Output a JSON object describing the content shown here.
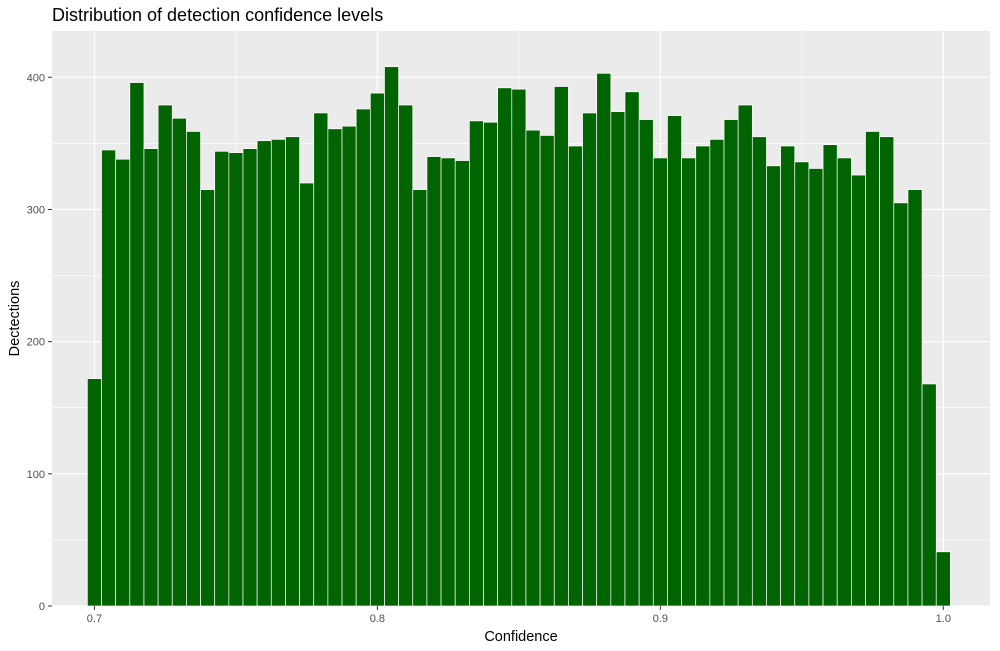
{
  "chart_data": {
    "type": "bar",
    "title": "Distribution of detection confidence levels",
    "xlabel": "Confidence",
    "ylabel": "Dectections",
    "xlim": [
      0.685,
      1.0165
    ],
    "ylim": [
      0,
      435
    ],
    "xticks": [
      0.7,
      0.8,
      0.9,
      1.0
    ],
    "xtick_labels": [
      "0.7",
      "0.8",
      "0.9",
      "1.0"
    ],
    "yticks": [
      0,
      100,
      200,
      300,
      400
    ],
    "ytick_labels": [
      "0",
      "100",
      "200",
      "300",
      "400"
    ],
    "bin_start": 0.6975,
    "bin_width": 0.005,
    "values": [
      172,
      345,
      338,
      396,
      346,
      379,
      369,
      359,
      315,
      344,
      343,
      346,
      352,
      353,
      355,
      320,
      373,
      361,
      363,
      376,
      388,
      408,
      379,
      315,
      340,
      339,
      337,
      367,
      366,
      392,
      391,
      360,
      356,
      393,
      348,
      373,
      403,
      374,
      389,
      368,
      339,
      371,
      339,
      348,
      353,
      368,
      379,
      355,
      333,
      348,
      336,
      331,
      349,
      339,
      326,
      359,
      355,
      305,
      315,
      168,
      41
    ],
    "bar_color": "#006400",
    "bar_outline": "#ffffff",
    "panel_background": "#ebebeb",
    "grid": true,
    "legend": "none"
  }
}
